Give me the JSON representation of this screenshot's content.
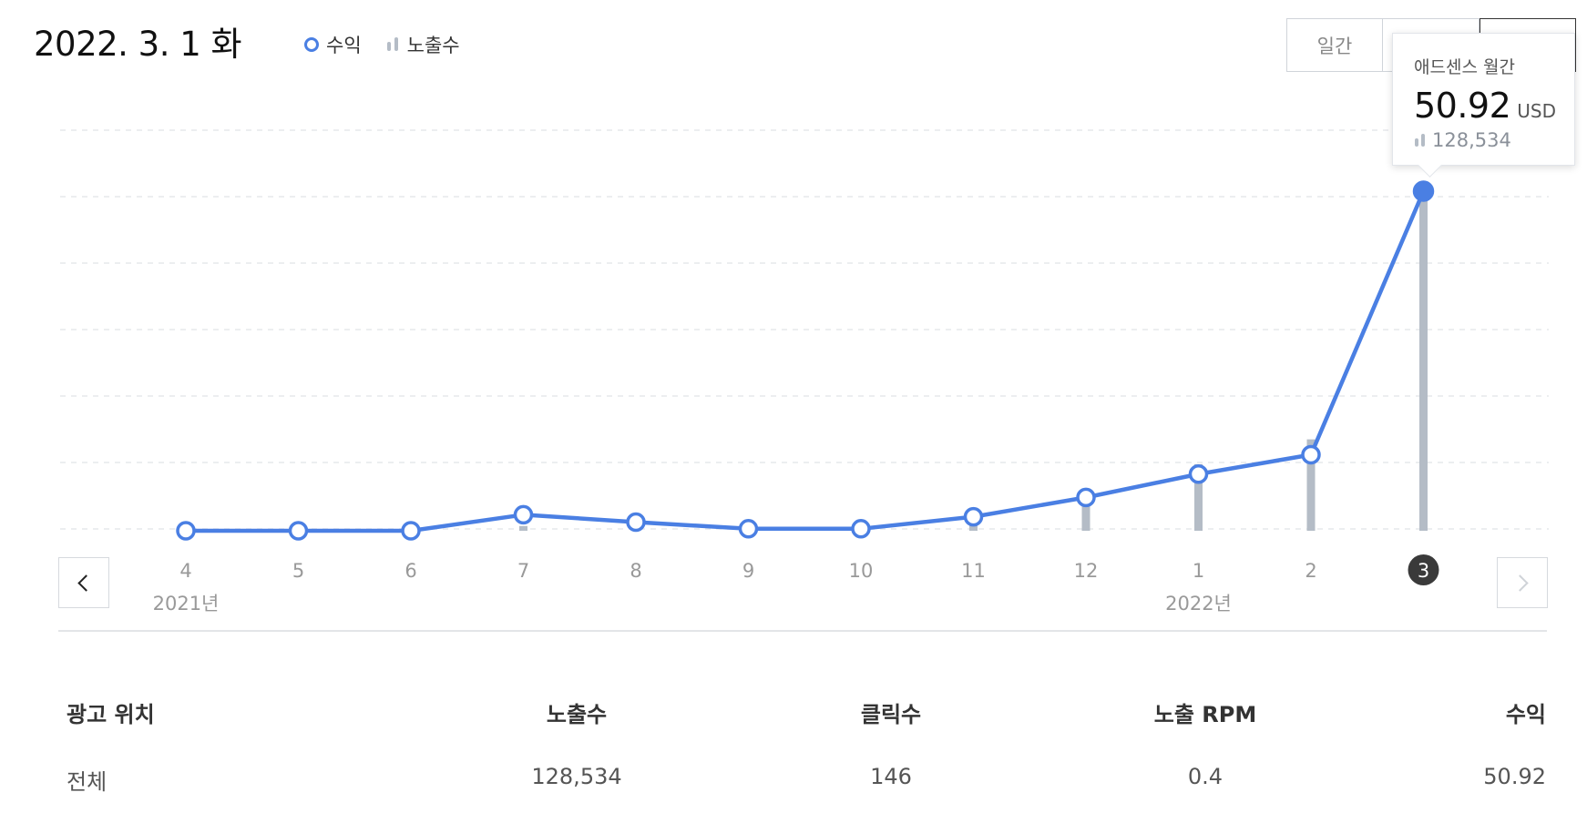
{
  "header": {
    "date_title": "2022. 3. 1 화",
    "legend": {
      "revenue_label": "수익",
      "impressions_label": "노출수"
    },
    "view_toggle": [
      "일간",
      "",
      ""
    ]
  },
  "colors": {
    "revenue_line": "#4a7fe3",
    "impression_bar": "#b4bcc6",
    "grid": "#e6e8eb",
    "selected_badge": "#3a3a3a"
  },
  "tooltip": {
    "title": "애드센스 월간",
    "value": "50.92",
    "unit": "USD",
    "impressions": "128,534"
  },
  "chart_data": {
    "type": "line+bar",
    "categories": [
      "4",
      "5",
      "6",
      "7",
      "8",
      "9",
      "10",
      "11",
      "12",
      "1",
      "2",
      "3"
    ],
    "year_labels": [
      {
        "index": 0,
        "label": "2021년"
      },
      {
        "index": 9,
        "label": "2022년"
      }
    ],
    "selected_index": 11,
    "series": [
      {
        "name": "수익",
        "kind": "line",
        "unit": "USD",
        "values": [
          0,
          0,
          0,
          2.4,
          1.3,
          0.3,
          0.3,
          2.1,
          5.0,
          8.5,
          11.4,
          50.92
        ]
      },
      {
        "name": "노출수",
        "kind": "bar",
        "values": [
          0,
          0,
          0,
          1800,
          4100,
          2200,
          3900,
          7200,
          14800,
          25200,
          34600,
          128534
        ]
      }
    ],
    "grid": true
  },
  "navigation": {
    "prev_icon": "chevron-left-icon",
    "next_icon": "chevron-right-icon"
  },
  "table": {
    "headers": {
      "placement": "광고 위치",
      "impressions": "노출수",
      "clicks": "클릭수",
      "rpm": "노출 RPM",
      "revenue": "수익"
    },
    "rows": [
      {
        "placement": "전체",
        "impressions": "128,534",
        "clicks": "146",
        "rpm": "0.4",
        "revenue": "50.92"
      }
    ]
  }
}
